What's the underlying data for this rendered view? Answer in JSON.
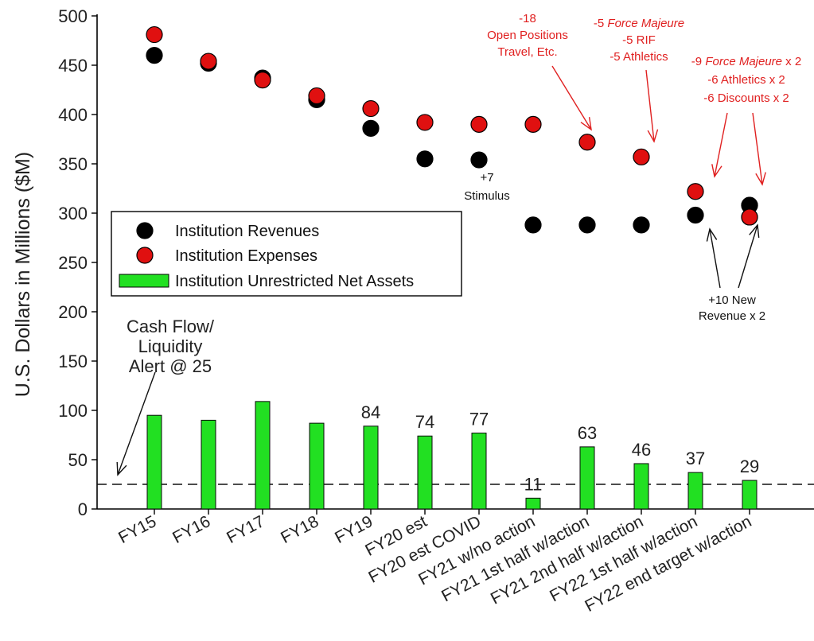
{
  "chart_data": {
    "type": "bar",
    "ylabel": "U.S. Dollars in Millions ($M)",
    "ylim": [
      0,
      500
    ],
    "yticks": [
      0,
      50,
      100,
      150,
      200,
      250,
      300,
      350,
      400,
      450,
      500
    ],
    "categories": [
      "FY15",
      "FY16",
      "FY17",
      "FY18",
      "FY19",
      "FY20 est",
      "FY20 est COVID",
      "FY21 w/no action",
      "FY21 1st half w/action",
      "FY21 2nd half w/action",
      "FY22 1st half w/action",
      "FY22 end target w/action"
    ],
    "series": [
      {
        "name": "Institution Revenues",
        "kind": "scatter",
        "color": "#000000",
        "values": [
          460,
          452,
          437,
          415,
          386,
          355,
          354,
          288,
          288,
          288,
          298,
          308
        ]
      },
      {
        "name": "Institution Expenses",
        "kind": "scatter",
        "color": "#e01010",
        "values": [
          481,
          454,
          435,
          419,
          406,
          392,
          390,
          390,
          372,
          357,
          322,
          296
        ]
      },
      {
        "name": "Institution Unrestricted Net Assets",
        "kind": "bar",
        "color": "#22e022",
        "values": [
          95,
          90,
          109,
          87,
          84,
          74,
          77,
          11,
          63,
          46,
          37,
          29
        ]
      }
    ],
    "bar_value_labels": [
      "",
      "",
      "",
      "",
      "84",
      "74",
      "77",
      "11",
      "63",
      "46",
      "37",
      "29"
    ],
    "reference_line": {
      "value": 25,
      "style": "dashed"
    },
    "legend_placement": "middle-left",
    "annotations": {
      "alert": [
        "Cash Flow/",
        "Liquidity",
        "Alert @ 25"
      ],
      "stimulus": [
        "+7",
        "Stimulus"
      ],
      "new_revenue": [
        "+10 New",
        "Revenue x 2"
      ],
      "cuts_1": [
        "-18",
        "Open Positions",
        "Travel, Etc."
      ],
      "cuts_2_line1_num": "-5 ",
      "cuts_2_line1_italic": "Force Majeure",
      "cuts_2_rest": [
        "-5 RIF",
        "-5 Athletics"
      ],
      "cuts_3_line1_num": "-9 ",
      "cuts_3_line1_italic": "Force Majeure",
      "cuts_3_line1_suffix": " x 2",
      "cuts_3_rest": [
        "-6 Athletics x 2",
        "-6 Discounts x 2"
      ]
    }
  }
}
